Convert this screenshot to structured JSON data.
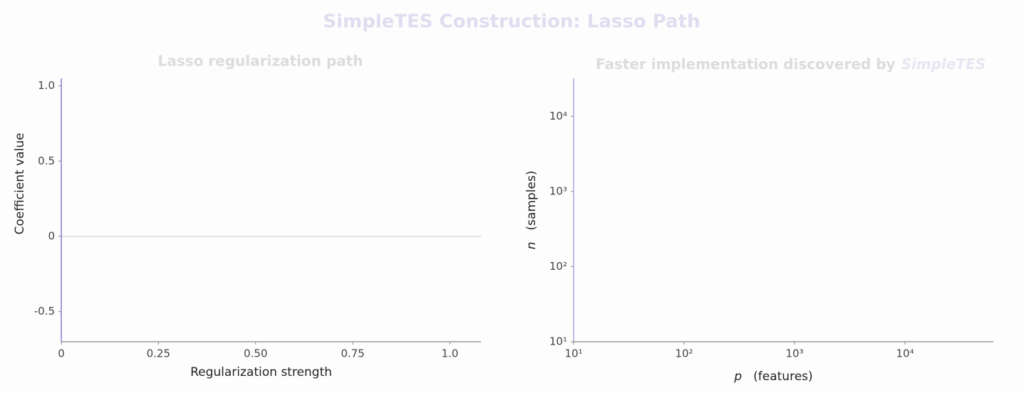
{
  "title": "SimpleTES Construction: Lasso Path",
  "chart_data": [
    {
      "type": "line",
      "title": "Lasso regularization path",
      "x_label": "Regularization strength",
      "y_label": "Coefficient value",
      "xlim": [
        0,
        1.08
      ],
      "ylim": [
        -0.7,
        1.05
      ],
      "xticks": [
        0,
        0.25,
        {
          "value": 0.5,
          "label": "0.50"
        },
        0.75,
        {
          "value": 1,
          "label": "1.0"
        }
      ],
      "yticks": [
        {
          "value": 1,
          "label": "1.0"
        },
        0.5,
        0,
        -0.5
      ],
      "hline": 0,
      "hline_color": "#c8c6d8",
      "axis_color": "#6a5acd",
      "series": []
    },
    {
      "type": "line",
      "title": "Faster implementation discovered by",
      "title_emphasis": "SimpleTES",
      "x_label": {
        "symbol": "p",
        "text": "(features)"
      },
      "y_label": {
        "symbol": "n",
        "text": "(samples)"
      },
      "log_scale": true,
      "xlim": [
        10,
        63000
      ],
      "ylim": [
        10,
        32000
      ],
      "xticks": [
        {
          "value": 10,
          "label": "10¹"
        },
        {
          "value": 100,
          "label": "10²"
        },
        {
          "value": 1000,
          "label": "10³"
        },
        {
          "value": 10000,
          "label": "10⁴"
        }
      ],
      "yticks": [
        {
          "value": 10,
          "label": "10¹"
        },
        {
          "value": 100,
          "label": "10²"
        },
        {
          "value": 1000,
          "label": "10³"
        },
        {
          "value": 10000,
          "label": "10⁴"
        }
      ],
      "axis_color": "#9b91d3",
      "series": []
    }
  ]
}
